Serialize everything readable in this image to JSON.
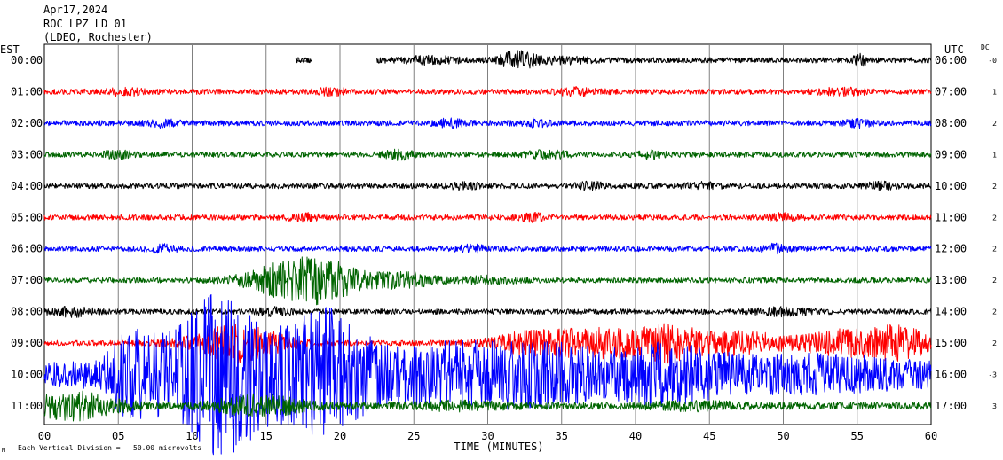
{
  "header": {
    "date": "Apr17,2024",
    "station": "ROC LPZ LD 01",
    "network": "(LDEO, Rochester)"
  },
  "left_zone_label": "EST",
  "right_zone_label": "UTC",
  "dc_label": "DC",
  "x_axis": {
    "label": "TIME (MINUTES)",
    "ticks": [
      "00",
      "05",
      "10",
      "15",
      "20",
      "25",
      "30",
      "35",
      "40",
      "45",
      "50",
      "55",
      "60"
    ]
  },
  "footer_note": "Each Vertical Division =   50.00 microvolts",
  "corner_mark": "M",
  "chart_data": {
    "type": "line",
    "title": "",
    "xlabel": "TIME (MINUTES)",
    "ylabel": "",
    "xlim": [
      0,
      60
    ],
    "grid": true,
    "colors": [
      "#000000",
      "#ff0000",
      "#0000ff",
      "#006400"
    ],
    "rows": [
      {
        "est": "00:00",
        "utc": "06:00",
        "dc": "-0",
        "color": "#000000",
        "amp": 3,
        "events": [
          [
            32,
            9,
            1.2
          ],
          [
            55.2,
            5,
            0.6
          ],
          [
            26,
            3,
            2
          ],
          [
            35,
            2.5,
            2
          ]
        ],
        "gaps": [
          [
            0,
            17
          ],
          [
            18.1,
            22.5
          ]
        ],
        "blip": [
          17,
          18.1
        ]
      },
      {
        "est": "01:00",
        "utc": "07:00",
        "dc": "1",
        "color": "#ff0000",
        "amp": 3,
        "events": [
          [
            5.5,
            3,
            1.2
          ],
          [
            19.5,
            3,
            1
          ],
          [
            36,
            3,
            1.5
          ],
          [
            54,
            3,
            1.5
          ]
        ]
      },
      {
        "est": "02:00",
        "utc": "08:00",
        "dc": "2",
        "color": "#0000ff",
        "amp": 3,
        "events": [
          [
            8,
            3,
            1
          ],
          [
            27.5,
            3.5,
            1
          ],
          [
            33,
            3.5,
            1
          ],
          [
            55,
            3,
            1
          ]
        ]
      },
      {
        "est": "03:00",
        "utc": "09:00",
        "dc": "1",
        "color": "#006400",
        "amp": 3,
        "events": [
          [
            5,
            3.5,
            1
          ],
          [
            24,
            4,
            1
          ],
          [
            34,
            3,
            1.5
          ],
          [
            41,
            3,
            1
          ]
        ]
      },
      {
        "est": "04:00",
        "utc": "10:00",
        "dc": "2",
        "color": "#000000",
        "amp": 3,
        "events": [
          [
            28.5,
            3,
            1
          ],
          [
            37,
            3,
            1
          ],
          [
            44.5,
            3,
            1
          ],
          [
            56.5,
            3,
            1
          ]
        ]
      },
      {
        "est": "05:00",
        "utc": "11:00",
        "dc": "2",
        "color": "#ff0000",
        "amp": 3,
        "events": [
          [
            17.5,
            3,
            1
          ],
          [
            33,
            3,
            1
          ],
          [
            50,
            3,
            1
          ]
        ]
      },
      {
        "est": "06:00",
        "utc": "12:00",
        "dc": "2",
        "color": "#0000ff",
        "amp": 3,
        "events": [
          [
            8,
            3,
            1
          ],
          [
            29,
            3,
            1
          ],
          [
            49.5,
            4,
            0.8
          ]
        ]
      },
      {
        "est": "07:00",
        "utc": "13:00",
        "dc": "2",
        "color": "#006400",
        "amp": 3,
        "events": [
          [
            17.8,
            26,
            3.5
          ],
          [
            24.5,
            7,
            2
          ],
          [
            30,
            3,
            2
          ]
        ]
      },
      {
        "est": "08:00",
        "utc": "14:00",
        "dc": "2",
        "color": "#000000",
        "amp": 3,
        "events": [
          [
            2,
            4,
            1.5
          ],
          [
            15.5,
            3,
            1.5
          ],
          [
            50,
            3,
            2
          ]
        ]
      },
      {
        "est": "09:00",
        "utc": "15:00",
        "dc": "2",
        "color": "#ff0000",
        "amp": 3,
        "events": [
          [
            13,
            20,
            3
          ],
          [
            33,
            11,
            3
          ],
          [
            37.5,
            13,
            3
          ],
          [
            42,
            18,
            2.5
          ],
          [
            47,
            12,
            3
          ],
          [
            54,
            13,
            3
          ],
          [
            58,
            16,
            2
          ]
        ]
      },
      {
        "est": "10:00",
        "utc": "16:00",
        "dc": "-3",
        "color": "#0000ff",
        "amp": 14,
        "events": [
          [
            6,
            35,
            2
          ],
          [
            12,
            80,
            3.5
          ],
          [
            19,
            60,
            3
          ],
          [
            26,
            20,
            4
          ],
          [
            33,
            25,
            5
          ],
          [
            42,
            22,
            4
          ],
          [
            52,
            10,
            6
          ]
        ]
      },
      {
        "est": "11:00",
        "utc": "17:00",
        "dc": "3",
        "color": "#006400",
        "amp": 4,
        "events": [
          [
            2,
            14,
            3
          ],
          [
            14.5,
            10,
            3
          ],
          [
            28,
            3,
            3
          ],
          [
            44,
            3,
            3
          ]
        ]
      }
    ]
  }
}
